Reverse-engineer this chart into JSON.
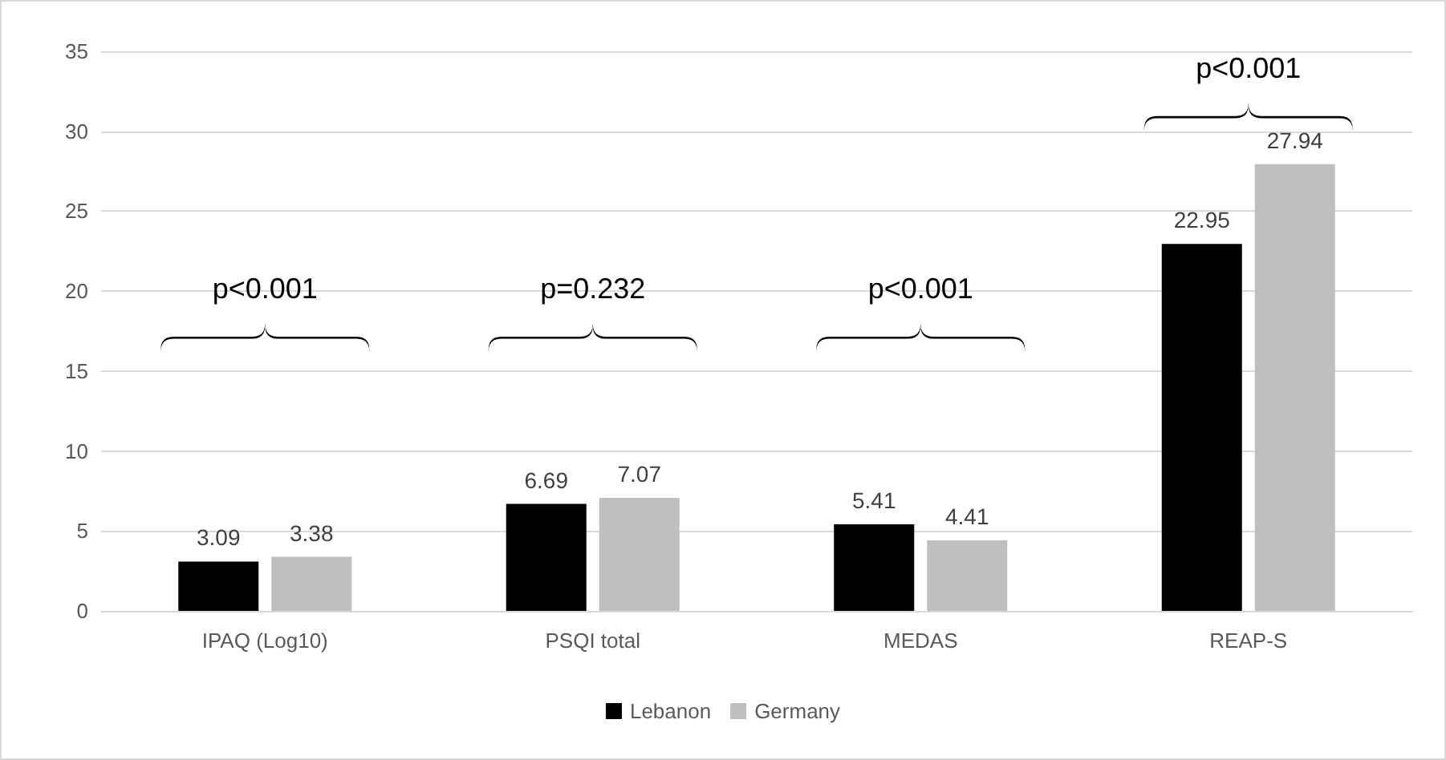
{
  "chart_data": {
    "type": "bar",
    "categories": [
      "IPAQ (Log10)",
      "PSQI total",
      "MEDAS",
      "REAP-S"
    ],
    "series": [
      {
        "name": "Lebanon",
        "color": "#000000",
        "values": [
          3.09,
          6.69,
          5.41,
          22.95
        ]
      },
      {
        "name": "Germany",
        "color": "#bfbfbf",
        "values": [
          3.38,
          7.07,
          4.41,
          27.94
        ]
      }
    ],
    "ylim": [
      0,
      35
    ],
    "yticks": [
      0,
      5,
      10,
      15,
      20,
      25,
      30,
      35
    ],
    "grid": "y",
    "legend": "bottom",
    "data_labels": true,
    "annotations": [
      "p<0.001",
      "p=0.232",
      "p<0.001",
      "p<0.001"
    ]
  }
}
